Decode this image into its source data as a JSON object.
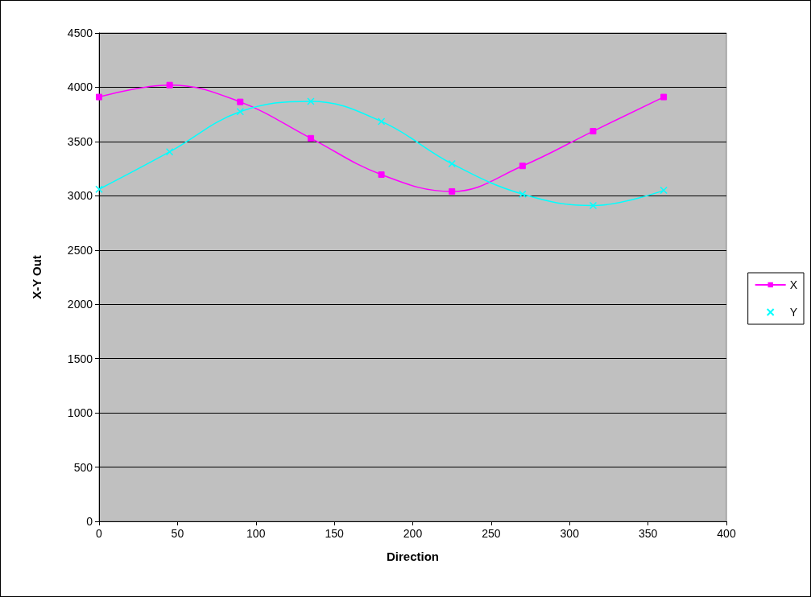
{
  "chart_data": {
    "type": "line",
    "xlabel": "Direction",
    "ylabel": "X-Y Out",
    "x": [
      0,
      45,
      90,
      135,
      180,
      225,
      270,
      315,
      360
    ],
    "xlim": [
      0,
      400
    ],
    "xticks": [
      0,
      50,
      100,
      150,
      200,
      250,
      300,
      350,
      400
    ],
    "ylim": [
      0,
      4500
    ],
    "yticks": [
      0,
      500,
      1000,
      1500,
      2000,
      2500,
      3000,
      3500,
      4000,
      4500
    ],
    "grid": "y",
    "legend": "right",
    "series": [
      {
        "name": "X",
        "color": "#ff00ff",
        "marker": "square",
        "values": [
          3910,
          4020,
          3865,
          3530,
          3195,
          3040,
          3275,
          3595,
          3910
        ]
      },
      {
        "name": "Y",
        "color": "#00ffff",
        "marker": "cross",
        "values": [
          3060,
          3405,
          3775,
          3870,
          3685,
          3295,
          3015,
          2910,
          3050
        ]
      }
    ]
  }
}
